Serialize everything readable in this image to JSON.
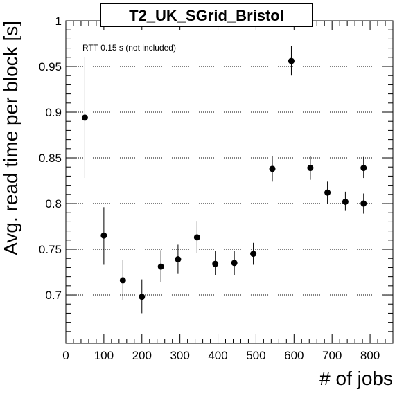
{
  "chart_data": {
    "type": "scatter",
    "title": "T2_UK_SGrid_Bristol",
    "xlabel": "# of jobs",
    "ylabel": "Avg. read time per block [s]",
    "annotation": "RTT 0.15 s (not included)",
    "xlim": [
      0,
      860
    ],
    "ylim": [
      0.647,
      1.0
    ],
    "x_ticks": [
      "0",
      "100",
      "200",
      "300",
      "400",
      "500",
      "600",
      "700",
      "800"
    ],
    "y_ticks": [
      "0.7",
      "0.75",
      "0.8",
      "0.85",
      "0.9",
      "0.95",
      "1"
    ],
    "grid": {
      "x": false,
      "y": true,
      "style": "dotted"
    },
    "legend": "none",
    "points": [
      {
        "x": 50,
        "y": 0.894,
        "err_low": 0.828,
        "err_high": 0.96
      },
      {
        "x": 100,
        "y": 0.765,
        "err_low": 0.733,
        "err_high": 0.796
      },
      {
        "x": 150,
        "y": 0.716,
        "err_low": 0.694,
        "err_high": 0.738
      },
      {
        "x": 200,
        "y": 0.698,
        "err_low": 0.68,
        "err_high": 0.717
      },
      {
        "x": 250,
        "y": 0.731,
        "err_low": 0.714,
        "err_high": 0.749
      },
      {
        "x": 295,
        "y": 0.739,
        "err_low": 0.723,
        "err_high": 0.755
      },
      {
        "x": 345,
        "y": 0.763,
        "err_low": 0.746,
        "err_high": 0.781
      },
      {
        "x": 393,
        "y": 0.734,
        "err_low": 0.722,
        "err_high": 0.748
      },
      {
        "x": 443,
        "y": 0.735,
        "err_low": 0.722,
        "err_high": 0.748
      },
      {
        "x": 493,
        "y": 0.745,
        "err_low": 0.733,
        "err_high": 0.757
      },
      {
        "x": 543,
        "y": 0.838,
        "err_low": 0.824,
        "err_high": 0.852
      },
      {
        "x": 593,
        "y": 0.956,
        "err_low": 0.94,
        "err_high": 0.972
      },
      {
        "x": 643,
        "y": 0.839,
        "err_low": 0.826,
        "err_high": 0.852
      },
      {
        "x": 688,
        "y": 0.812,
        "err_low": 0.8,
        "err_high": 0.824
      },
      {
        "x": 735,
        "y": 0.802,
        "err_low": 0.792,
        "err_high": 0.813
      },
      {
        "x": 783,
        "y": 0.8,
        "err_low": 0.789,
        "err_high": 0.811
      },
      {
        "x": 783,
        "y": 0.839,
        "err_low": 0.828,
        "err_high": 0.851
      }
    ],
    "colors": {
      "marker": "#000000",
      "axes": "#000000",
      "grid": "#000000",
      "background": "#ffffff"
    }
  }
}
